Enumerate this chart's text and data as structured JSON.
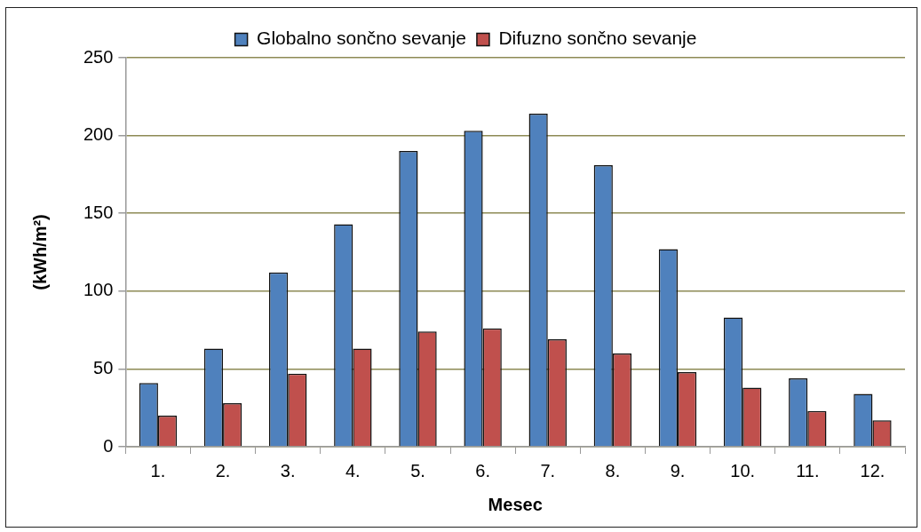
{
  "chart_data": {
    "type": "bar",
    "xlabel": "Mesec",
    "ylabel": "(kWh/m²)",
    "categories": [
      "1.",
      "2.",
      "3.",
      "4.",
      "5.",
      "6.",
      "7.",
      "8.",
      "9.",
      "10.",
      "11.",
      "12."
    ],
    "series": [
      {
        "name": "Globalno sončno sevanje",
        "color": "#4f81bd",
        "values": [
          41,
          63,
          112,
          143,
          190,
          203,
          214,
          181,
          127,
          83,
          44,
          34
        ]
      },
      {
        "name": "Difuzno sončno sevanje",
        "color": "#c0504d",
        "values": [
          20,
          28,
          47,
          63,
          74,
          76,
          69,
          60,
          48,
          38,
          23,
          17
        ]
      }
    ],
    "ylim": [
      0,
      250
    ],
    "yticks": [
      0,
      50,
      100,
      150,
      200,
      250
    ],
    "grid": "y",
    "legend": "top"
  }
}
